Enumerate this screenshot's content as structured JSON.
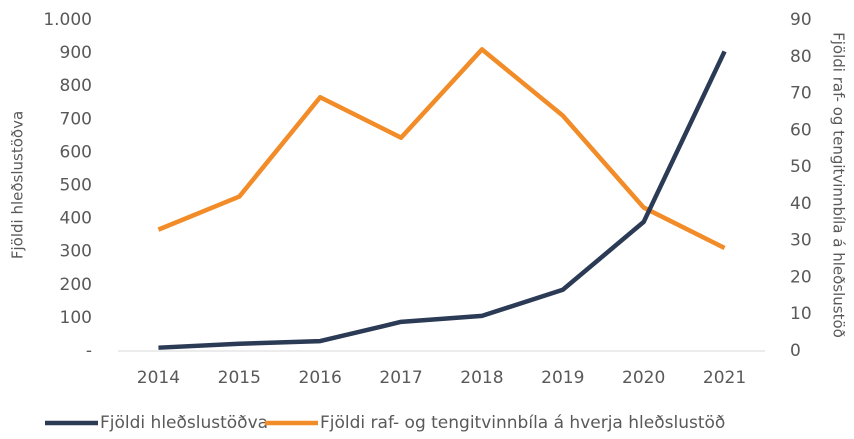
{
  "chart_data": {
    "type": "line",
    "categories": [
      "2014",
      "2015",
      "2016",
      "2017",
      "2018",
      "2019",
      "2020",
      "2021"
    ],
    "series": [
      {
        "name": "Fjöldi hleðslustöðva",
        "color": "#2b3a55",
        "values": [
          10,
          22,
          30,
          88,
          106,
          185,
          390,
          905
        ]
      },
      {
        "name": "Fjöldi raf- og tengitvinnbíla á hverja hleðslustöð",
        "color": "#f28c28",
        "axis": "y2",
        "values": [
          33,
          42,
          69,
          58,
          82,
          64,
          39,
          28
        ]
      }
    ],
    "ylabel": "Fjöldi hleðslustöðva",
    "y2label": "Fjöldi raf- og tengitvinnbíla á hleðslustöð",
    "ylim": [
      0,
      1000
    ],
    "yticks": [
      {
        "value": 0,
        "label": "-"
      },
      100,
      200,
      300,
      400,
      500,
      600,
      700,
      800,
      900,
      {
        "value": 1000,
        "label": "1.000"
      }
    ],
    "y2lim": [
      0,
      90
    ],
    "y2ticks": [
      0,
      10,
      20,
      30,
      40,
      50,
      60,
      70,
      80,
      90
    ],
    "legend": "bottom",
    "grid": false
  }
}
